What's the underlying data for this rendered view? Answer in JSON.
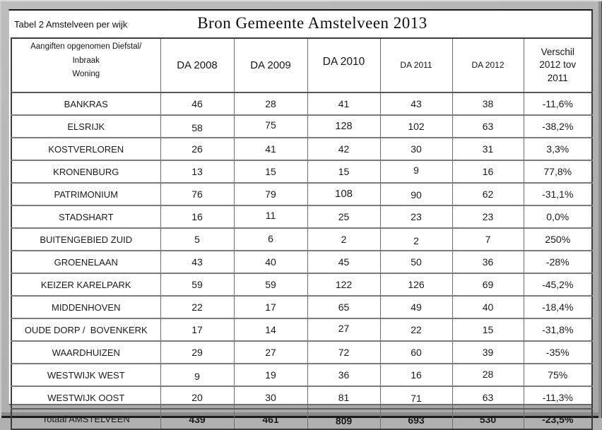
{
  "header": {
    "corner_label": "Tabel 2 Amstelveen per wijk",
    "title": "Bron Gemeente Amstelveen 2013"
  },
  "table": {
    "columns": [
      "Aangiften opgenomen Diefstal/ Inbraak\nWoning",
      "DA 2008",
      "DA 2009",
      "DA 2010",
      "DA 2011",
      "DA 2012",
      "Verschil\n2012 tov\n2011"
    ],
    "rows": [
      {
        "wijk": "BANKRAS",
        "values": [
          46,
          28,
          41,
          43,
          38
        ],
        "verschil": "-11,6%"
      },
      {
        "wijk": "ELSRIJK",
        "values": [
          58,
          75,
          128,
          102,
          63
        ],
        "verschil": "-38,2%"
      },
      {
        "wijk": "KOSTVERLOREN",
        "values": [
          26,
          41,
          42,
          30,
          31
        ],
        "verschil": "3,3%"
      },
      {
        "wijk": "KRONENBURG",
        "values": [
          13,
          15,
          15,
          9,
          16
        ],
        "verschil": "77,8%"
      },
      {
        "wijk": "PATRIMONIUM",
        "values": [
          76,
          79,
          108,
          90,
          62
        ],
        "verschil": "-31,1%"
      },
      {
        "wijk": "STADSHART",
        "values": [
          16,
          11,
          25,
          23,
          23
        ],
        "verschil": "0,0%"
      },
      {
        "wijk": "BUITENGEBIED ZUID",
        "values": [
          5,
          6,
          2,
          2,
          7
        ],
        "verschil": "250%"
      },
      {
        "wijk": "GROENELAAN",
        "values": [
          43,
          40,
          45,
          50,
          36
        ],
        "verschil": "-28%"
      },
      {
        "wijk": "KEIZER KARELPARK",
        "values": [
          59,
          59,
          122,
          126,
          69
        ],
        "verschil": "-45,2%"
      },
      {
        "wijk": "MIDDENHOVEN",
        "values": [
          22,
          17,
          65,
          49,
          40
        ],
        "verschil": "-18,4%"
      },
      {
        "wijk": "OUDE DORP /  BOVENKERK",
        "values": [
          17,
          14,
          27,
          22,
          15
        ],
        "verschil": "-31,8%"
      },
      {
        "wijk": "WAARDHUIZEN",
        "values": [
          29,
          27,
          72,
          60,
          39
        ],
        "verschil": "-35%"
      },
      {
        "wijk": "WESTWIJK WEST",
        "values": [
          9,
          19,
          36,
          16,
          28
        ],
        "verschil": "75%"
      },
      {
        "wijk": "WESTWIJK OOST",
        "values": [
          20,
          30,
          81,
          71,
          63
        ],
        "verschil": "-11,3%"
      }
    ],
    "total": {
      "label": "Totaal AMSTELVEEN",
      "values": [
        439,
        461,
        809,
        693,
        530
      ],
      "verschil": "-23,5%"
    }
  },
  "colors": {
    "text": "#1a1a1a",
    "grid_line": "#6f6f6f",
    "table_border": "#3c3c3c",
    "frame_background": "#b0b0b0",
    "panel_background": "#ffffff"
  }
}
